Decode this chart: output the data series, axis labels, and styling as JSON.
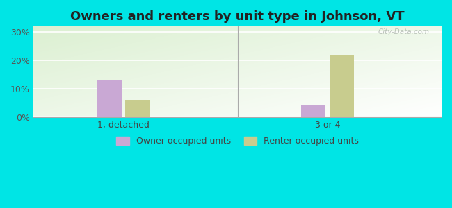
{
  "title": "Owners and renters by unit type in Johnson, VT",
  "groups": [
    "1, detached",
    "3 or 4"
  ],
  "owner_values": [
    13.2,
    4.1
  ],
  "renter_values": [
    6.0,
    21.7
  ],
  "owner_color": "#c9a8d4",
  "renter_color": "#c8cc8e",
  "ylabel_ticks": [
    0,
    10,
    20,
    30
  ],
  "ylim": [
    0,
    32
  ],
  "background_color": "#00e5e5",
  "legend_owner": "Owner occupied units",
  "legend_renter": "Renter occupied units",
  "bar_width": 0.06,
  "group_positions": [
    0.22,
    0.72
  ],
  "title_fontsize": 13,
  "watermark": "City-Data.com"
}
